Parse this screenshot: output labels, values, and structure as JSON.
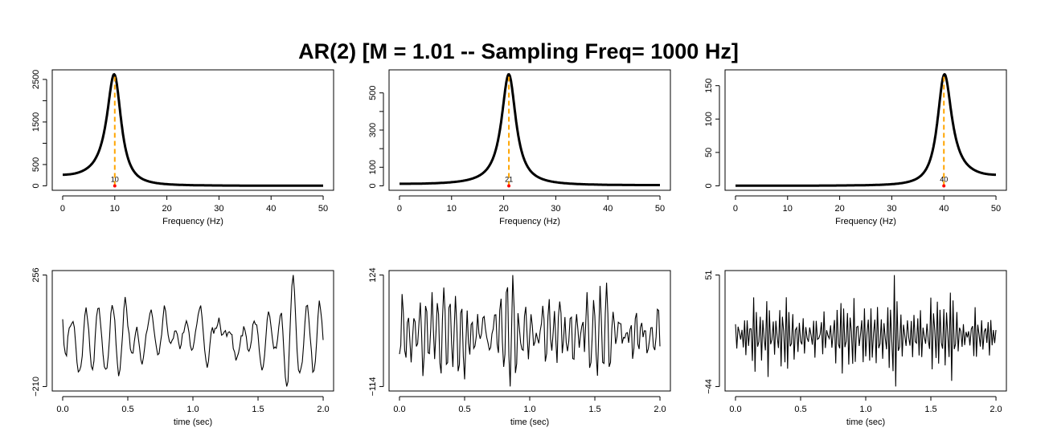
{
  "title": "AR(2) [M = 1.01 -- Sampling Freq=  1000  Hz]",
  "colors": {
    "spectrum": "#000000",
    "peak_line": "#FFA500",
    "peak_point": "#FF0000",
    "series": "#000000"
  },
  "chart_data": [
    {
      "type": "line",
      "panel": "spectrum",
      "peak_freq": 10,
      "peak_label": "10",
      "peak_value": 2620,
      "xlabel": "Frequency (Hz)",
      "xlim": [
        0,
        50
      ],
      "ylim": [
        0,
        2620
      ],
      "xticks": [
        "0",
        "10",
        "20",
        "30",
        "40",
        "50"
      ],
      "yticks": [
        0,
        500,
        1000,
        1500,
        2000,
        2500
      ],
      "ytick_labels": [
        "0",
        "500",
        "",
        "1500",
        "",
        "2500"
      ]
    },
    {
      "type": "line",
      "panel": "spectrum",
      "peak_freq": 21,
      "peak_label": "21",
      "peak_value": 600,
      "xlabel": "Frequency (Hz)",
      "xlim": [
        0,
        50
      ],
      "ylim": [
        0,
        600
      ],
      "xticks": [
        "0",
        "10",
        "20",
        "30",
        "40",
        "50"
      ],
      "yticks": [
        0,
        100,
        200,
        300,
        400,
        500
      ],
      "ytick_labels": [
        "0",
        "100",
        "",
        "300",
        "",
        "500"
      ]
    },
    {
      "type": "line",
      "panel": "spectrum",
      "peak_freq": 40,
      "peak_label": "40",
      "peak_value": 167,
      "xlabel": "Frequency (Hz)",
      "xlim": [
        0,
        50
      ],
      "ylim": [
        0,
        167
      ],
      "xticks": [
        "0",
        "10",
        "20",
        "30",
        "40",
        "50"
      ],
      "yticks": [
        0,
        50,
        100,
        150
      ],
      "ytick_labels": [
        "0",
        "50",
        "100",
        "150"
      ]
    },
    {
      "type": "line",
      "panel": "time-series",
      "freq": 10,
      "xlabel": "time (sec)",
      "xlim": [
        0,
        2
      ],
      "ylim": [
        -210,
        256
      ],
      "xticks": [
        "0.0",
        "0.5",
        "1.0",
        "1.5",
        "2.0"
      ],
      "yticks": [
        -210,
        256
      ],
      "ytick_labels": [
        "−210",
        "256"
      ]
    },
    {
      "type": "line",
      "panel": "time-series",
      "freq": 21,
      "xlabel": "time (sec)",
      "xlim": [
        0,
        2
      ],
      "ylim": [
        -114,
        124
      ],
      "xticks": [
        "0.0",
        "0.5",
        "1.0",
        "1.5",
        "2.0"
      ],
      "yticks": [
        -114,
        124
      ],
      "ytick_labels": [
        "−114",
        "124"
      ]
    },
    {
      "type": "line",
      "panel": "time-series",
      "freq": 40,
      "xlabel": "time (sec)",
      "xlim": [
        0,
        2
      ],
      "ylim": [
        -44,
        51
      ],
      "xticks": [
        "0.0",
        "0.5",
        "1.0",
        "1.5",
        "2.0"
      ],
      "yticks": [
        -44,
        51
      ],
      "ytick_labels": [
        "−44",
        "51"
      ]
    }
  ]
}
